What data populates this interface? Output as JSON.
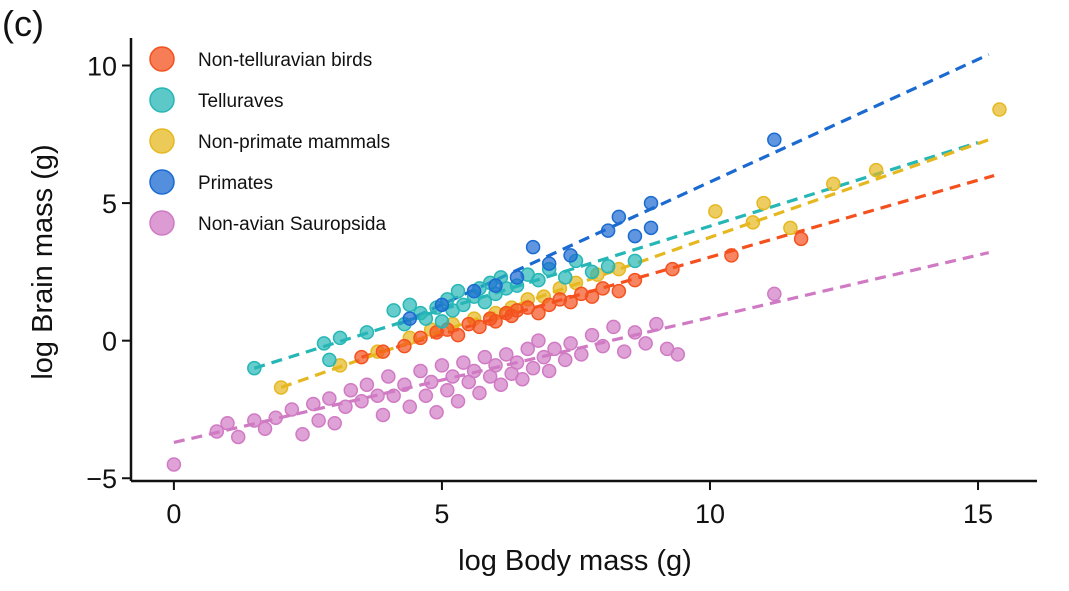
{
  "chart_data": {
    "type": "scatter",
    "panel_label": "(c)",
    "xlabel": "log Body mass (g)",
    "ylabel": "log Brain mass (g)",
    "xlim": [
      -0.8,
      16.1
    ],
    "ylim": [
      -5.1,
      11.0
    ],
    "xticks": [
      0,
      5,
      10,
      15
    ],
    "yticks": [
      -5,
      0,
      5,
      10
    ],
    "xtick_labels": [
      "0",
      "5",
      "10",
      "15"
    ],
    "ytick_labels": [
      "−5",
      "0",
      "5",
      "10"
    ],
    "legend_position": "top-left",
    "grid": false,
    "series": [
      {
        "name": "Non-telluravian birds",
        "color": "#f4511e",
        "fit": {
          "x": [
            3.5,
            15.3
          ],
          "y": [
            -0.6,
            6.0
          ]
        },
        "points": [
          [
            3.5,
            -0.6
          ],
          [
            3.9,
            -0.4
          ],
          [
            4.3,
            -0.2
          ],
          [
            4.6,
            0.1
          ],
          [
            4.9,
            0.3
          ],
          [
            5.1,
            0.4
          ],
          [
            5.3,
            0.2
          ],
          [
            5.5,
            0.6
          ],
          [
            5.7,
            0.5
          ],
          [
            5.9,
            0.8
          ],
          [
            6.0,
            0.7
          ],
          [
            6.2,
            1.0
          ],
          [
            6.3,
            0.9
          ],
          [
            6.4,
            1.1
          ],
          [
            6.6,
            1.2
          ],
          [
            6.8,
            1.0
          ],
          [
            7.0,
            1.3
          ],
          [
            7.2,
            1.5
          ],
          [
            7.4,
            1.4
          ],
          [
            7.6,
            1.7
          ],
          [
            7.8,
            1.6
          ],
          [
            8.0,
            1.9
          ],
          [
            8.3,
            1.8
          ],
          [
            8.6,
            2.2
          ],
          [
            9.3,
            2.6
          ],
          [
            10.4,
            3.1
          ],
          [
            11.7,
            3.7
          ]
        ]
      },
      {
        "name": "Telluraves",
        "color": "#26b6b6",
        "fit": {
          "x": [
            1.5,
            15.0
          ],
          "y": [
            -1.0,
            7.2
          ]
        },
        "points": [
          [
            1.5,
            -1.0
          ],
          [
            2.8,
            -0.1
          ],
          [
            3.1,
            0.1
          ],
          [
            2.9,
            -0.7
          ],
          [
            3.6,
            0.3
          ],
          [
            4.1,
            1.1
          ],
          [
            4.3,
            0.6
          ],
          [
            4.4,
            1.3
          ],
          [
            4.6,
            1.0
          ],
          [
            4.7,
            0.8
          ],
          [
            4.9,
            1.2
          ],
          [
            5.0,
            0.7
          ],
          [
            5.1,
            1.5
          ],
          [
            5.2,
            1.1
          ],
          [
            5.3,
            1.8
          ],
          [
            5.4,
            1.3
          ],
          [
            5.6,
            1.6
          ],
          [
            5.7,
            1.9
          ],
          [
            5.8,
            1.4
          ],
          [
            5.9,
            2.1
          ],
          [
            6.0,
            1.7
          ],
          [
            6.1,
            2.3
          ],
          [
            6.2,
            1.9
          ],
          [
            6.4,
            2.0
          ],
          [
            6.6,
            2.4
          ],
          [
            6.8,
            2.2
          ],
          [
            7.0,
            2.6
          ],
          [
            7.3,
            2.3
          ],
          [
            7.5,
            2.9
          ],
          [
            7.8,
            2.5
          ],
          [
            8.1,
            2.7
          ],
          [
            8.6,
            2.9
          ]
        ]
      },
      {
        "name": "Non-primate mammals",
        "color": "#e6b820",
        "fit": {
          "x": [
            2.0,
            15.2
          ],
          "y": [
            -1.7,
            7.3
          ]
        },
        "points": [
          [
            2.0,
            -1.7
          ],
          [
            3.1,
            -0.9
          ],
          [
            3.8,
            -0.4
          ],
          [
            4.4,
            0.1
          ],
          [
            4.8,
            0.4
          ],
          [
            5.2,
            0.6
          ],
          [
            5.6,
            0.8
          ],
          [
            6.0,
            1.0
          ],
          [
            6.3,
            1.2
          ],
          [
            6.6,
            1.5
          ],
          [
            6.9,
            1.6
          ],
          [
            7.2,
            1.9
          ],
          [
            7.5,
            2.1
          ],
          [
            7.9,
            2.4
          ],
          [
            8.3,
            2.6
          ],
          [
            10.1,
            4.7
          ],
          [
            10.8,
            4.3
          ],
          [
            11.0,
            5.0
          ],
          [
            11.5,
            4.1
          ],
          [
            12.3,
            5.7
          ],
          [
            13.1,
            6.2
          ],
          [
            15.4,
            8.4
          ]
        ]
      },
      {
        "name": "Primates",
        "color": "#1b6ad1",
        "fit": {
          "x": [
            4.2,
            15.2
          ],
          "y": [
            0.6,
            10.4
          ]
        },
        "points": [
          [
            4.4,
            0.8
          ],
          [
            5.0,
            1.3
          ],
          [
            5.6,
            1.8
          ],
          [
            6.0,
            2.0
          ],
          [
            6.4,
            2.3
          ],
          [
            6.7,
            3.4
          ],
          [
            7.0,
            2.8
          ],
          [
            7.4,
            3.1
          ],
          [
            8.1,
            4.0
          ],
          [
            8.3,
            4.5
          ],
          [
            8.9,
            4.1
          ],
          [
            8.9,
            5.0
          ],
          [
            8.6,
            3.8
          ],
          [
            11.2,
            7.3
          ]
        ]
      },
      {
        "name": "Non-avian Sauropsida",
        "color": "#d07ac4",
        "fit": {
          "x": [
            0.0,
            15.2
          ],
          "y": [
            -3.7,
            3.2
          ]
        },
        "points": [
          [
            0.0,
            -4.5
          ],
          [
            0.8,
            -3.3
          ],
          [
            1.0,
            -3.0
          ],
          [
            1.2,
            -3.5
          ],
          [
            1.5,
            -2.9
          ],
          [
            1.7,
            -3.2
          ],
          [
            1.9,
            -2.8
          ],
          [
            2.2,
            -2.5
          ],
          [
            2.4,
            -3.4
          ],
          [
            2.6,
            -2.3
          ],
          [
            2.7,
            -2.9
          ],
          [
            2.9,
            -2.1
          ],
          [
            3.0,
            -3.0
          ],
          [
            3.2,
            -2.4
          ],
          [
            3.3,
            -1.8
          ],
          [
            3.5,
            -2.2
          ],
          [
            3.6,
            -1.6
          ],
          [
            3.8,
            -2.0
          ],
          [
            3.9,
            -2.7
          ],
          [
            4.0,
            -1.3
          ],
          [
            4.1,
            -2.0
          ],
          [
            4.3,
            -1.6
          ],
          [
            4.4,
            -2.4
          ],
          [
            4.6,
            -1.1
          ],
          [
            4.7,
            -2.0
          ],
          [
            4.8,
            -1.5
          ],
          [
            4.9,
            -2.6
          ],
          [
            5.0,
            -0.9
          ],
          [
            5.1,
            -1.8
          ],
          [
            5.2,
            -1.3
          ],
          [
            5.3,
            -2.2
          ],
          [
            5.4,
            -0.8
          ],
          [
            5.5,
            -1.5
          ],
          [
            5.6,
            -1.1
          ],
          [
            5.7,
            -1.9
          ],
          [
            5.8,
            -0.6
          ],
          [
            5.9,
            -1.3
          ],
          [
            6.0,
            -0.9
          ],
          [
            6.1,
            -1.6
          ],
          [
            6.2,
            -0.5
          ],
          [
            6.3,
            -1.2
          ],
          [
            6.4,
            -0.8
          ],
          [
            6.5,
            -1.4
          ],
          [
            6.6,
            -0.3
          ],
          [
            6.7,
            -1.0
          ],
          [
            6.8,
            0.0
          ],
          [
            6.9,
            -0.6
          ],
          [
            7.0,
            -1.1
          ],
          [
            7.1,
            -0.3
          ],
          [
            7.3,
            -0.7
          ],
          [
            7.4,
            -0.1
          ],
          [
            7.6,
            -0.5
          ],
          [
            7.8,
            0.2
          ],
          [
            8.0,
            -0.2
          ],
          [
            8.2,
            0.5
          ],
          [
            8.4,
            -0.4
          ],
          [
            8.6,
            0.3
          ],
          [
            8.8,
            -0.1
          ],
          [
            9.0,
            0.6
          ],
          [
            9.2,
            -0.3
          ],
          [
            9.4,
            -0.5
          ],
          [
            11.2,
            1.7
          ]
        ]
      }
    ]
  }
}
